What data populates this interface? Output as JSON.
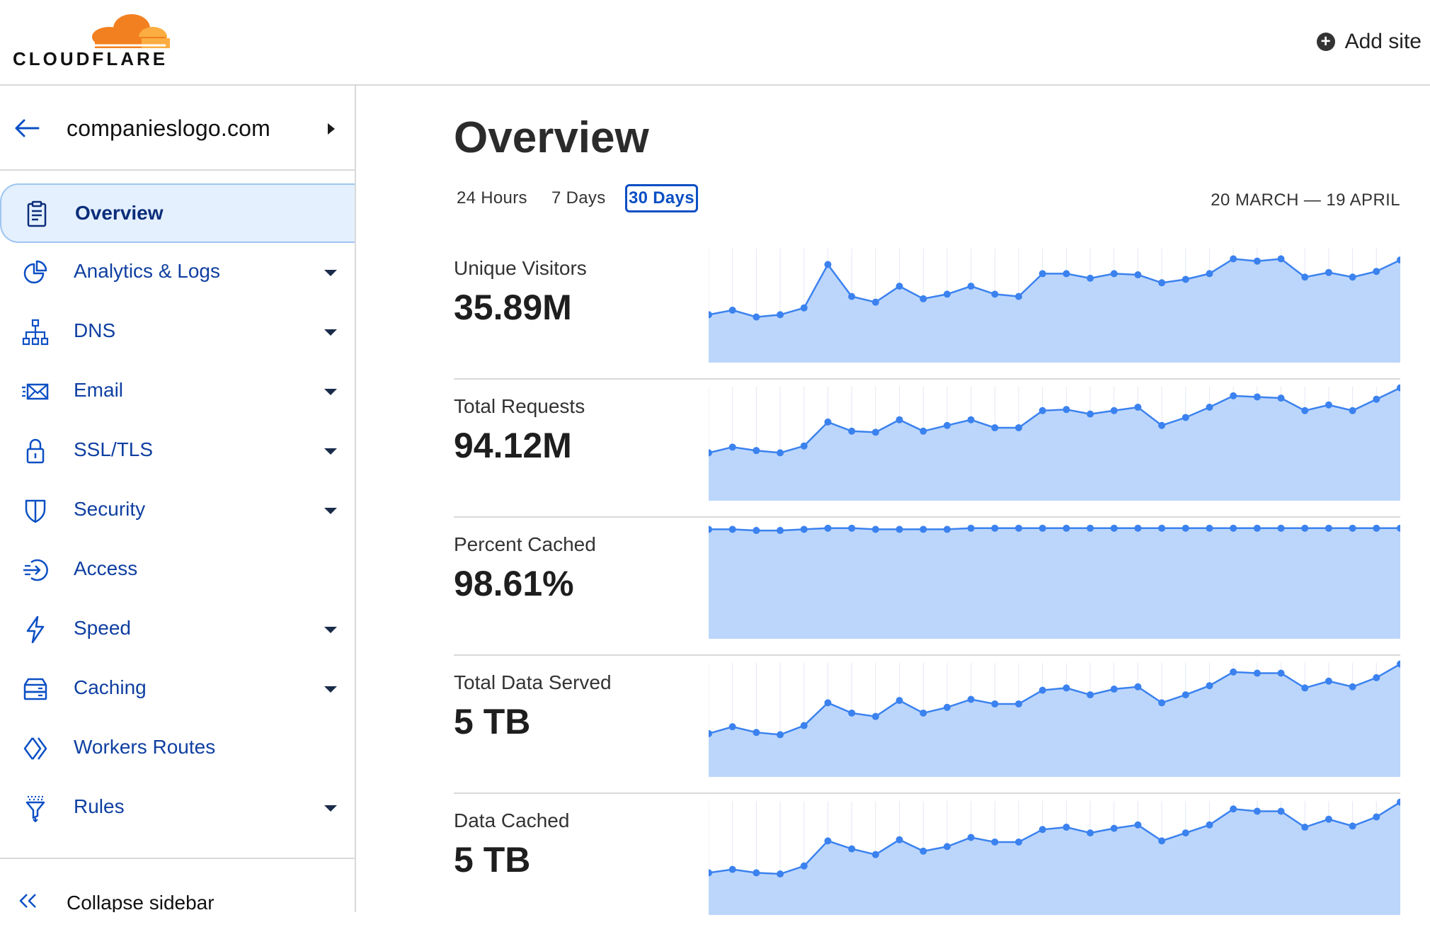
{
  "brand": {
    "name": "CLOUDFLARE",
    "cloud_color": "#f38020",
    "cloud_color_light": "#fbad41"
  },
  "header": {
    "add_site_label": "Add site",
    "add_site_icon": "plus-circle-icon"
  },
  "sidebar": {
    "site_name": "companieslogo.com",
    "items": [
      {
        "label": "Overview",
        "icon": "clipboard-icon",
        "active": true,
        "has_caret": false
      },
      {
        "label": "Analytics & Logs",
        "icon": "pie-chart-icon",
        "active": false,
        "has_caret": true
      },
      {
        "label": "DNS",
        "icon": "network-icon",
        "active": false,
        "has_caret": true
      },
      {
        "label": "Email",
        "icon": "envelope-icon",
        "active": false,
        "has_caret": true
      },
      {
        "label": "SSL/TLS",
        "icon": "lock-icon",
        "active": false,
        "has_caret": true
      },
      {
        "label": "Security",
        "icon": "shield-icon",
        "active": false,
        "has_caret": true
      },
      {
        "label": "Access",
        "icon": "access-icon",
        "active": false,
        "has_caret": false
      },
      {
        "label": "Speed",
        "icon": "lightning-icon",
        "active": false,
        "has_caret": true
      },
      {
        "label": "Caching",
        "icon": "server-icon",
        "active": false,
        "has_caret": true
      },
      {
        "label": "Workers Routes",
        "icon": "workers-icon",
        "active": false,
        "has_caret": false
      },
      {
        "label": "Rules",
        "icon": "funnel-icon",
        "active": false,
        "has_caret": true
      }
    ],
    "collapse_label": "Collapse sidebar"
  },
  "main": {
    "title": "Overview",
    "range_tabs": [
      {
        "label": "24 Hours",
        "active": false
      },
      {
        "label": "7 Days",
        "active": false
      },
      {
        "label": "30 Days",
        "active": true
      }
    ],
    "date_range": "20 MARCH — 19 APRIL",
    "accent_color": "#0b4fc4",
    "area_color": "#bcd6fb",
    "line_color": "#3b82ef"
  },
  "chart_data": [
    {
      "type": "area",
      "title": "Unique Visitors",
      "value_label": "35.89M",
      "values": [
        0.42,
        0.46,
        0.4,
        0.42,
        0.48,
        0.86,
        0.58,
        0.53,
        0.67,
        0.56,
        0.6,
        0.67,
        0.6,
        0.58,
        0.78,
        0.78,
        0.74,
        0.78,
        0.77,
        0.7,
        0.73,
        0.78,
        0.91,
        0.89,
        0.91,
        0.75,
        0.79,
        0.75,
        0.8,
        0.9
      ]
    },
    {
      "type": "area",
      "title": "Total Requests",
      "value_label": "94.12M",
      "values": [
        0.42,
        0.47,
        0.44,
        0.42,
        0.48,
        0.69,
        0.61,
        0.6,
        0.71,
        0.61,
        0.66,
        0.71,
        0.64,
        0.64,
        0.79,
        0.8,
        0.76,
        0.79,
        0.82,
        0.66,
        0.73,
        0.82,
        0.92,
        0.91,
        0.9,
        0.79,
        0.84,
        0.79,
        0.89,
        0.99
      ]
    },
    {
      "type": "area",
      "title": "Percent Cached",
      "value_label": "98.61%",
      "values": [
        0.96,
        0.96,
        0.95,
        0.95,
        0.96,
        0.97,
        0.97,
        0.96,
        0.96,
        0.96,
        0.96,
        0.97,
        0.97,
        0.97,
        0.97,
        0.97,
        0.97,
        0.97,
        0.97,
        0.97,
        0.97,
        0.97,
        0.97,
        0.97,
        0.97,
        0.97,
        0.97,
        0.97,
        0.97,
        0.97
      ]
    },
    {
      "type": "area",
      "title": "Total Data Served",
      "value_label": "5 TB",
      "values": [
        0.38,
        0.44,
        0.39,
        0.37,
        0.45,
        0.65,
        0.56,
        0.53,
        0.67,
        0.56,
        0.61,
        0.68,
        0.64,
        0.64,
        0.76,
        0.78,
        0.72,
        0.77,
        0.79,
        0.65,
        0.72,
        0.8,
        0.92,
        0.91,
        0.91,
        0.78,
        0.84,
        0.79,
        0.87,
        0.99
      ]
    },
    {
      "type": "area",
      "title": "Data Cached",
      "value_label": "5 TB",
      "values": [
        0.37,
        0.4,
        0.37,
        0.36,
        0.43,
        0.65,
        0.58,
        0.53,
        0.66,
        0.56,
        0.6,
        0.68,
        0.64,
        0.64,
        0.75,
        0.77,
        0.72,
        0.76,
        0.79,
        0.65,
        0.72,
        0.79,
        0.93,
        0.91,
        0.91,
        0.77,
        0.84,
        0.78,
        0.86,
        0.99
      ]
    }
  ]
}
